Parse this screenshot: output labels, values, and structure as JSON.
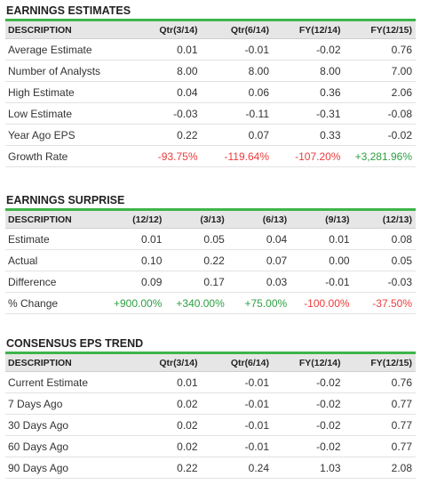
{
  "earnings_estimates": {
    "title": "EARNINGS ESTIMATES",
    "headers": [
      "DESCRIPTION",
      "Qtr(3/14)",
      "Qtr(6/14)",
      "FY(12/14)",
      "FY(12/15)"
    ],
    "rows": [
      {
        "label": "Average Estimate",
        "values": [
          "0.01",
          "-0.01",
          "-0.02",
          "0.76"
        ]
      },
      {
        "label": "Number of Analysts",
        "values": [
          "8.00",
          "8.00",
          "8.00",
          "7.00"
        ]
      },
      {
        "label": "High Estimate",
        "values": [
          "0.04",
          "0.06",
          "0.36",
          "2.06"
        ]
      },
      {
        "label": "Low Estimate",
        "values": [
          "-0.03",
          "-0.11",
          "-0.31",
          "-0.08"
        ]
      },
      {
        "label": "Year Ago EPS",
        "values": [
          "0.22",
          "0.07",
          "0.33",
          "-0.02"
        ]
      },
      {
        "label": "Growth Rate",
        "values": [
          "-93.75%",
          "-119.64%",
          "-107.20%",
          "+3,281.96%"
        ]
      }
    ]
  },
  "earnings_surprise": {
    "title": "EARNINGS SURPRISE",
    "headers": [
      "DESCRIPTION",
      "(12/12)",
      "(3/13)",
      "(6/13)",
      "(9/13)",
      "(12/13)"
    ],
    "rows": [
      {
        "label": "Estimate",
        "values": [
          "0.01",
          "0.05",
          "0.04",
          "0.01",
          "0.08"
        ]
      },
      {
        "label": "Actual",
        "values": [
          "0.10",
          "0.22",
          "0.07",
          "0.00",
          "0.05"
        ]
      },
      {
        "label": "Difference",
        "values": [
          "0.09",
          "0.17",
          "0.03",
          "-0.01",
          "-0.03"
        ]
      },
      {
        "label": "% Change",
        "values": [
          "+900.00%",
          "+340.00%",
          "+75.00%",
          "-100.00%",
          "-37.50%"
        ]
      }
    ]
  },
  "consensus_eps_trend": {
    "title": "CONSENSUS EPS TREND",
    "headers": [
      "DESCRIPTION",
      "Qtr(3/14)",
      "Qtr(6/14)",
      "FY(12/14)",
      "FY(12/15)"
    ],
    "rows": [
      {
        "label": "Current Estimate",
        "values": [
          "0.01",
          "-0.01",
          "-0.02",
          "0.76"
        ]
      },
      {
        "label": "7 Days Ago",
        "values": [
          "0.02",
          "-0.01",
          "-0.02",
          "0.77"
        ]
      },
      {
        "label": "30 Days Ago",
        "values": [
          "0.02",
          "-0.01",
          "-0.02",
          "0.77"
        ]
      },
      {
        "label": "60 Days Ago",
        "values": [
          "0.02",
          "-0.01",
          "-0.02",
          "0.77"
        ]
      },
      {
        "label": "90 Days Ago",
        "values": [
          "0.22",
          "0.24",
          "1.03",
          "2.08"
        ]
      }
    ]
  },
  "colors": {
    "accent_rule": "#3db54a",
    "negative": "#ec3c3c",
    "positive": "#2ea043",
    "header_bg": "#e6e6e6"
  }
}
